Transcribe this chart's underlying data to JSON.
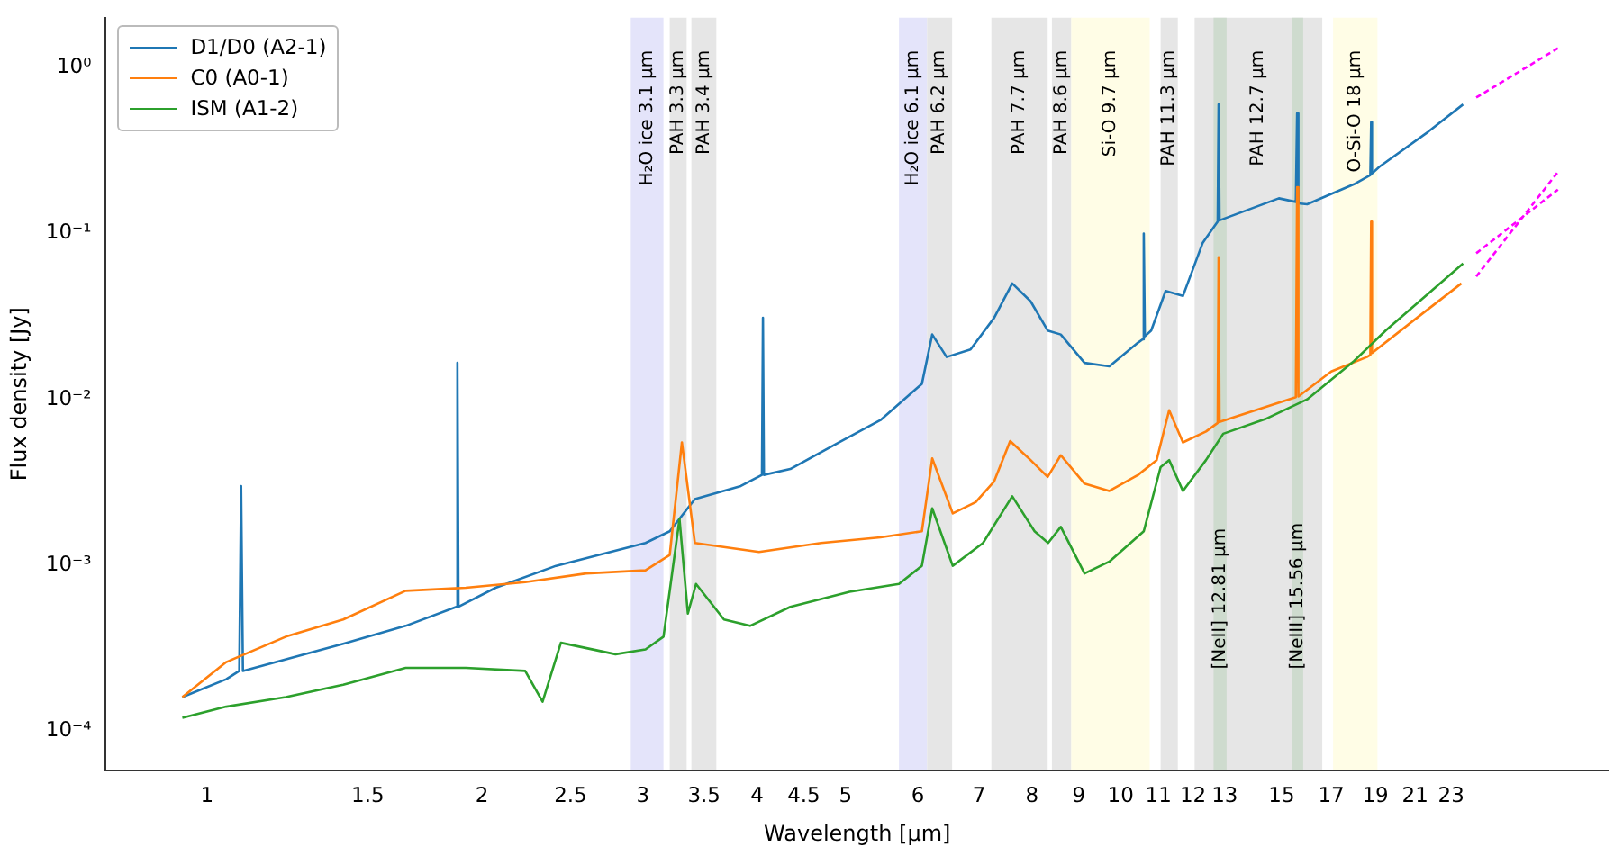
{
  "chart_data": {
    "type": "line",
    "xlabel": "Wavelength [μm]",
    "ylabel": "Flux density [Jy]",
    "log": "xy",
    "legend": "top left",
    "marker": "none",
    "xlim": [
      0.775,
      34.2
    ],
    "ylim": [
      5.8e-05,
      2.0
    ],
    "xticks": [
      1,
      1.5,
      2,
      2.5,
      3,
      3.5,
      4,
      4.5,
      5,
      6,
      7,
      8,
      9,
      10,
      11,
      12,
      13,
      15,
      17,
      19,
      21,
      23
    ],
    "yticks": [
      {
        "value": 0.0001,
        "label": "10⁻⁴"
      },
      {
        "value": 0.001,
        "label": "10⁻³"
      },
      {
        "value": 0.01,
        "label": "10⁻²"
      },
      {
        "value": 0.1,
        "label": "10⁻¹"
      },
      {
        "value": 1,
        "label": "10⁰"
      }
    ],
    "bands": [
      {
        "axis": "x",
        "from": 2.91,
        "to": 3.16,
        "label": "H₂O ice 3.1 μm",
        "color": "#e1e1fa"
      },
      {
        "axis": "x",
        "from": 3.21,
        "to": 3.35,
        "label": "PAH 3.3 μm",
        "color": "#e3e3e3"
      },
      {
        "axis": "x",
        "from": 3.39,
        "to": 3.61,
        "label": "PAH 3.4 μm",
        "color": "#e3e3e3"
      },
      {
        "axis": "x",
        "from": 5.72,
        "to": 6.14,
        "label": "H₂O ice 6.1 μm",
        "color": "#e1e1fa"
      },
      {
        "axis": "x",
        "from": 6.14,
        "to": 6.54,
        "label": "PAH 6.2 μm",
        "color": "#e3e3e3"
      },
      {
        "axis": "x",
        "from": 7.22,
        "to": 8.32,
        "label": "PAH 7.7 μm",
        "color": "#e3e3e3"
      },
      {
        "axis": "x",
        "from": 8.41,
        "to": 8.83,
        "label": "PAH 8.6 μm",
        "color": "#e3e3e3"
      },
      {
        "axis": "x",
        "from": 8.83,
        "to": 10.76,
        "label": "Si-O 9.7 μm",
        "color": "#fffde3"
      },
      {
        "axis": "x",
        "from": 11.06,
        "to": 11.55,
        "label": "PAH 11.3 μm",
        "color": "#e3e3e3"
      },
      {
        "axis": "x",
        "from": 12.05,
        "to": 16.62,
        "label": "PAH 12.7 μm",
        "color": "#e3e3e3"
      },
      {
        "axis": "x",
        "from": 12.64,
        "to": 13.06,
        "label": "[NeII] 12.81 μm",
        "color": "#cbd9cb"
      },
      {
        "axis": "x",
        "from": 15.41,
        "to": 15.84,
        "label": "[NeIII] 15.56 μm",
        "color": "#cbd9cb"
      },
      {
        "axis": "x",
        "from": 17.08,
        "to": 19.1,
        "label": "O-Si-O 18 μm",
        "color": "#fffde3"
      }
    ],
    "series": [
      {
        "name": "D1/D0 (A2-1)",
        "color": "#1f77b4",
        "x": [
          0.94,
          1.05,
          1.085,
          1.09,
          1.095,
          1.41,
          1.65,
          1.875,
          1.88,
          1.885,
          2.07,
          2.41,
          3.02,
          3.21,
          3.42,
          3.84,
          4.05,
          4.06,
          4.07,
          4.35,
          4.92,
          5.46,
          6.06,
          6.22,
          6.45,
          6.85,
          7.27,
          7.61,
          7.97,
          8.32,
          8.6,
          9.13,
          9.72,
          10.45,
          10.57,
          10.6,
          10.63,
          10.8,
          11.2,
          11.7,
          12.3,
          12.77,
          12.8,
          12.83,
          14.9,
          15.55,
          15.6,
          15.65,
          16.0,
          18.0,
          18.76,
          18.8,
          18.84,
          19.2,
          21.7,
          23.7
        ],
        "values": [
          0.00016,
          0.000205,
          0.00023,
          0.003,
          0.00023,
          0.000335,
          0.00043,
          0.00056,
          0.0166,
          0.00056,
          0.00073,
          0.00099,
          0.00136,
          0.0016,
          0.0025,
          0.003,
          0.0035,
          0.031,
          0.0035,
          0.0038,
          0.0055,
          0.0075,
          0.0124,
          0.0246,
          0.018,
          0.02,
          0.031,
          0.05,
          0.039,
          0.026,
          0.0246,
          0.0166,
          0.0158,
          0.022,
          0.023,
          0.1,
          0.024,
          0.026,
          0.045,
          0.042,
          0.088,
          0.118,
          0.6,
          0.12,
          0.163,
          0.155,
          0.53,
          0.152,
          0.15,
          0.198,
          0.225,
          0.47,
          0.23,
          0.253,
          0.41,
          0.6
        ]
      },
      {
        "name": "C0 (A0-1)",
        "color": "#ff7f0e",
        "x": [
          0.94,
          1.05,
          1.22,
          1.41,
          1.65,
          1.92,
          2.23,
          2.6,
          3.02,
          3.21,
          3.31,
          3.42,
          4.02,
          4.7,
          5.46,
          6.06,
          6.22,
          6.55,
          6.94,
          7.27,
          7.57,
          7.97,
          8.32,
          8.6,
          9.13,
          9.72,
          10.45,
          10.95,
          11.3,
          11.7,
          12.4,
          12.77,
          12.8,
          12.83,
          13.4,
          15.55,
          15.6,
          15.65,
          17.0,
          18.6,
          18.76,
          18.8,
          18.84,
          21.1,
          23.6
        ],
        "values": [
          0.00016,
          0.00026,
          0.00037,
          0.00047,
          0.0007,
          0.00073,
          0.00079,
          0.00089,
          0.00093,
          0.00115,
          0.0055,
          0.00136,
          0.0012,
          0.00136,
          0.00147,
          0.0016,
          0.0044,
          0.00205,
          0.0024,
          0.0032,
          0.0056,
          0.0043,
          0.0034,
          0.0046,
          0.0031,
          0.0028,
          0.0035,
          0.0043,
          0.0086,
          0.0055,
          0.0064,
          0.0072,
          0.072,
          0.0073,
          0.0079,
          0.0103,
          0.19,
          0.0104,
          0.0147,
          0.018,
          0.0185,
          0.118,
          0.019,
          0.031,
          0.05
        ]
      },
      {
        "name": "ISM (A1-2)",
        "color": "#2ca02c",
        "x": [
          0.94,
          1.05,
          1.22,
          1.41,
          1.65,
          1.92,
          2.23,
          2.33,
          2.44,
          2.8,
          3.02,
          3.16,
          3.29,
          3.36,
          3.43,
          3.68,
          3.93,
          4.35,
          5.05,
          5.72,
          6.06,
          6.22,
          6.55,
          7.07,
          7.61,
          8.05,
          8.33,
          8.6,
          9.13,
          9.72,
          10.6,
          11.06,
          11.3,
          11.7,
          12.4,
          12.95,
          14.4,
          16.0,
          18.0,
          19.5,
          23.7
        ],
        "values": [
          0.00012,
          0.00014,
          0.00016,
          0.00019,
          0.00024,
          0.00024,
          0.00023,
          0.00015,
          0.00034,
          0.00029,
          0.00031,
          0.00037,
          0.0019,
          0.00051,
          0.00077,
          0.00047,
          0.00043,
          0.00056,
          0.00069,
          0.00077,
          0.00099,
          0.0022,
          0.00099,
          0.00136,
          0.0026,
          0.0016,
          0.00136,
          0.0017,
          0.00089,
          0.00105,
          0.0016,
          0.0039,
          0.0043,
          0.0028,
          0.0043,
          0.0062,
          0.0076,
          0.01,
          0.017,
          0.026,
          0.066
        ]
      },
      {
        "color": "#ff00ff",
        "line_style": "dashed",
        "x": [
          24.5,
          30.1
        ],
        "values": [
          0.66,
          1.31
        ]
      },
      {
        "color": "#ff00ff",
        "line_style": "dashed",
        "x": [
          24.5,
          30.1
        ],
        "values": [
          0.055,
          0.235
        ]
      },
      {
        "color": "#ff00ff",
        "line_style": "dashed",
        "x": [
          24.5,
          30.1
        ],
        "values": [
          0.076,
          0.184
        ]
      }
    ]
  }
}
